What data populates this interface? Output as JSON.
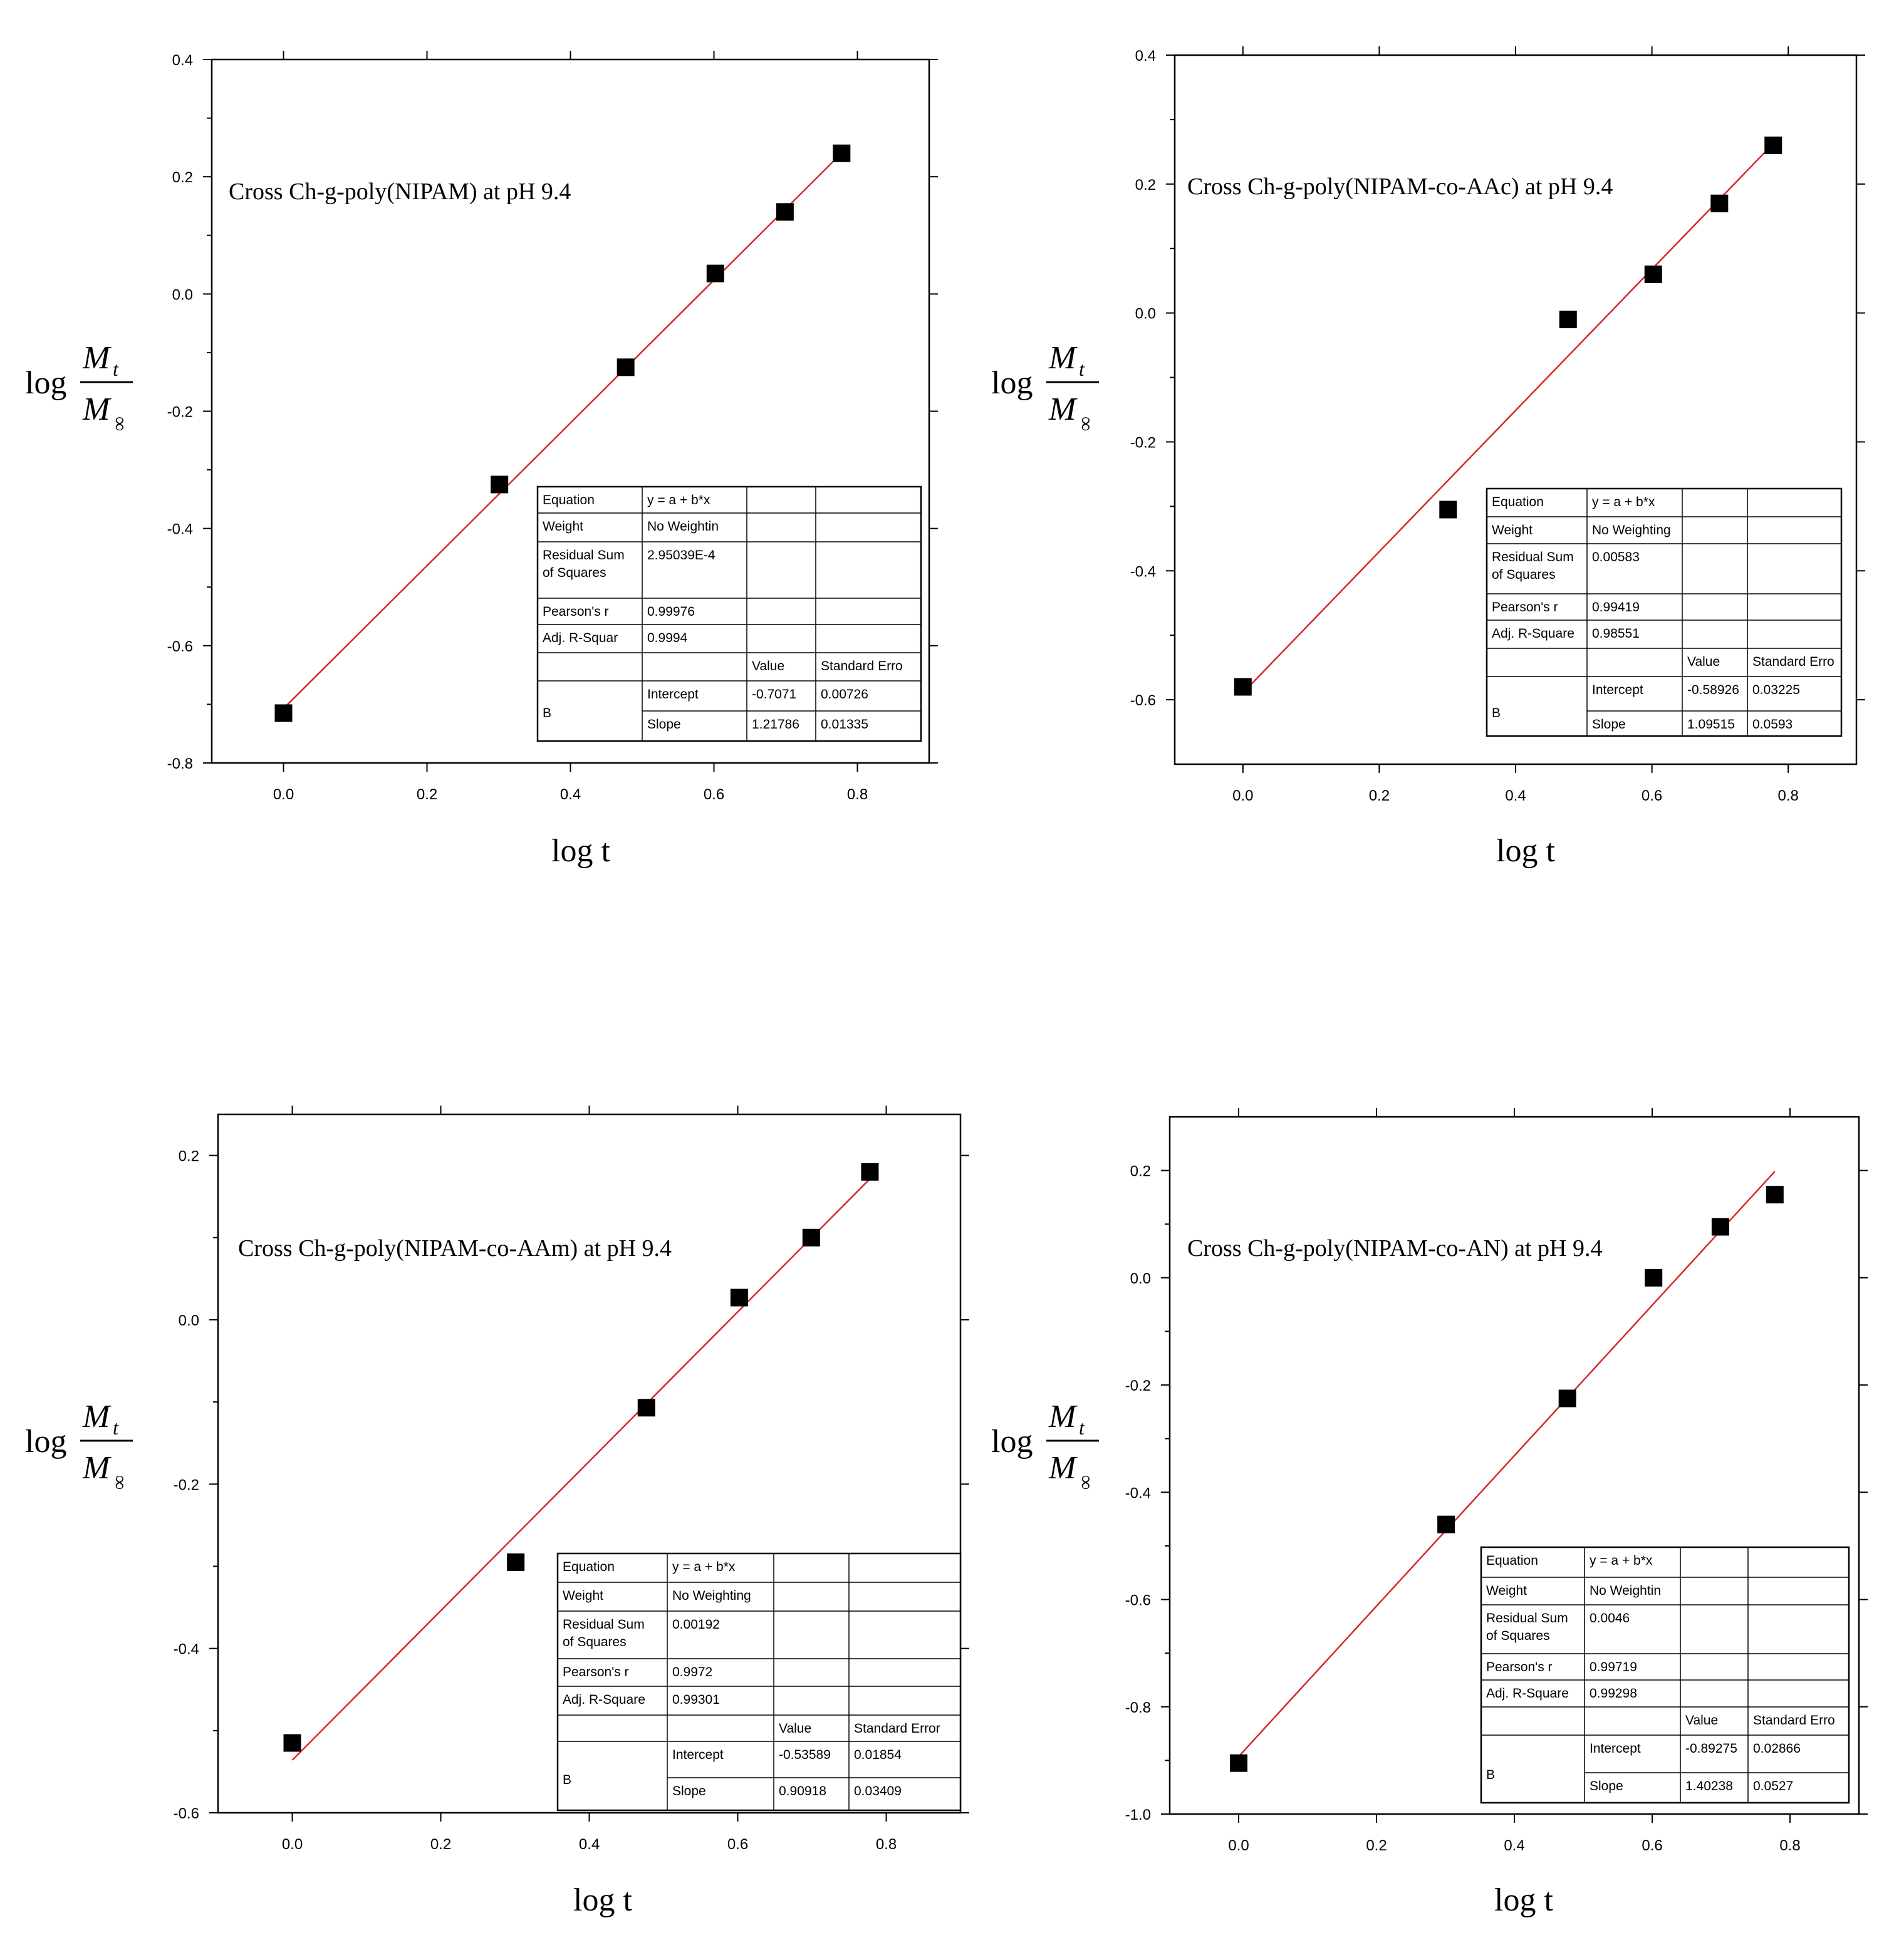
{
  "ylabel": {
    "log": "log",
    "numerator": "M",
    "numerator_sub": "t",
    "denominator": "M",
    "denominator_sub": "∞"
  },
  "chart_data": [
    {
      "type": "scatter",
      "title": "Cross Ch-g-poly(NIPAM) at pH 9.4",
      "xlabel": "log t",
      "xlim": [
        -0.1,
        0.9
      ],
      "ylim": [
        -0.8,
        0.4
      ],
      "xticks": [
        "0.0",
        "0.2",
        "0.4",
        "0.6",
        "0.8"
      ],
      "yticks": [
        "-0.8",
        "-0.6",
        "-0.4",
        "-0.2",
        "0.0",
        "0.2",
        "0.4"
      ],
      "series": [
        {
          "x": [
            0.0,
            0.301,
            0.477,
            0.602,
            0.699,
            0.778
          ],
          "y": [
            -0.715,
            -0.325,
            -0.125,
            0.035,
            0.14,
            0.24
          ]
        }
      ],
      "fit": {
        "intercept": -0.7071,
        "slope": 1.21786,
        "color": "#d62728"
      },
      "table": [
        [
          "Equation",
          "y = a + b*x",
          "",
          ""
        ],
        [
          "Weight",
          "No Weightin",
          "",
          ""
        ],
        [
          "Residual Sum of Squares",
          "2.95039E-4",
          "",
          ""
        ],
        [
          "Pearson's r",
          "0.99976",
          "",
          ""
        ],
        [
          "Adj. R-Squar",
          "0.9994",
          "",
          ""
        ],
        [
          "",
          "",
          "Value",
          "Standard Erro"
        ],
        [
          "B",
          "Intercept",
          "-0.7071",
          "0.00726"
        ],
        [
          "B",
          "Slope",
          "1.21786",
          "0.01335"
        ]
      ]
    },
    {
      "type": "scatter",
      "title": "Cross Ch-g-poly(NIPAM-co-AAc) at pH 9.4",
      "xlabel": "log t",
      "xlim": [
        -0.1,
        0.9
      ],
      "ylim": [
        -0.7,
        0.4
      ],
      "xticks": [
        "0.0",
        "0.2",
        "0.4",
        "0.6",
        "0.8"
      ],
      "yticks": [
        "-0.6",
        "-0.4",
        "-0.2",
        "0.0",
        "0.2",
        "0.4"
      ],
      "series": [
        {
          "x": [
            0.0,
            0.301,
            0.477,
            0.602,
            0.699,
            0.778
          ],
          "y": [
            -0.58,
            -0.305,
            -0.01,
            0.06,
            0.17,
            0.26
          ]
        }
      ],
      "fit": {
        "intercept": -0.58926,
        "slope": 1.09515,
        "color": "#d62728"
      },
      "table": [
        [
          "Equation",
          "y = a + b*x",
          "",
          ""
        ],
        [
          "Weight",
          "No Weighting",
          "",
          ""
        ],
        [
          "Residual Sum of Squares",
          "0.00583",
          "",
          ""
        ],
        [
          "Pearson's r",
          "0.99419",
          "",
          ""
        ],
        [
          "Adj. R-Square",
          "0.98551",
          "",
          ""
        ],
        [
          "",
          "",
          "Value",
          "Standard Erro"
        ],
        [
          "B",
          "Intercept",
          "-0.58926",
          "0.03225"
        ],
        [
          "B",
          "Slope",
          "1.09515",
          "0.0593"
        ]
      ]
    },
    {
      "type": "scatter",
      "title": "Cross Ch-g-poly(NIPAM-co-AAm) at pH 9.4",
      "xlabel": "log t",
      "xlim": [
        -0.1,
        0.9
      ],
      "ylim": [
        -0.6,
        0.25
      ],
      "xticks": [
        "0.0",
        "0.2",
        "0.4",
        "0.6",
        "0.8"
      ],
      "yticks": [
        "-0.6",
        "-0.4",
        "-0.2",
        "0.0",
        "0.2"
      ],
      "series": [
        {
          "x": [
            0.0,
            0.301,
            0.477,
            0.602,
            0.699,
            0.778
          ],
          "y": [
            -0.515,
            -0.295,
            -0.107,
            0.027,
            0.1,
            0.18
          ]
        }
      ],
      "fit": {
        "intercept": -0.53589,
        "slope": 0.90918,
        "color": "#d62728"
      },
      "table": [
        [
          "Equation",
          "y = a + b*x",
          "",
          ""
        ],
        [
          "Weight",
          "No Weighting",
          "",
          ""
        ],
        [
          "Residual Sum of Squares",
          "0.00192",
          "",
          ""
        ],
        [
          "Pearson's r",
          "0.9972",
          "",
          ""
        ],
        [
          "Adj. R-Square",
          "0.99301",
          "",
          ""
        ],
        [
          "",
          "",
          "Value",
          "Standard Error"
        ],
        [
          "B",
          "Intercept",
          "-0.53589",
          "0.01854"
        ],
        [
          "B",
          "Slope",
          "0.90918",
          "0.03409"
        ]
      ]
    },
    {
      "type": "scatter",
      "title": "Cross Ch-g-poly(NIPAM-co-AN) at pH 9.4",
      "xlabel": "log t",
      "xlim": [
        -0.1,
        0.9
      ],
      "ylim": [
        -1.0,
        0.3
      ],
      "xticks": [
        "0.0",
        "0.2",
        "0.4",
        "0.6",
        "0.8"
      ],
      "yticks": [
        "-1.0",
        "-0.8",
        "-0.6",
        "-0.4",
        "-0.2",
        "0.0",
        "0.2"
      ],
      "series": [
        {
          "x": [
            0.0,
            0.301,
            0.477,
            0.602,
            0.699,
            0.778
          ],
          "y": [
            -0.905,
            -0.46,
            -0.225,
            0.0,
            0.095,
            0.155
          ]
        }
      ],
      "fit": {
        "intercept": -0.89275,
        "slope": 1.40238,
        "color": "#d62728"
      },
      "table": [
        [
          "Equation",
          "y = a + b*x",
          "",
          ""
        ],
        [
          "Weight",
          "No Weightin",
          "",
          ""
        ],
        [
          "Residual Sum of Squares",
          "0.0046",
          "",
          ""
        ],
        [
          "Pearson's r",
          "0.99719",
          "",
          ""
        ],
        [
          "Adj. R-Square",
          "0.99298",
          "",
          ""
        ],
        [
          "",
          "",
          "Value",
          "Standard Erro"
        ],
        [
          "B",
          "Intercept",
          "-0.89275",
          "0.02866"
        ],
        [
          "B",
          "Slope",
          "1.40238",
          "0.0527"
        ]
      ]
    }
  ]
}
